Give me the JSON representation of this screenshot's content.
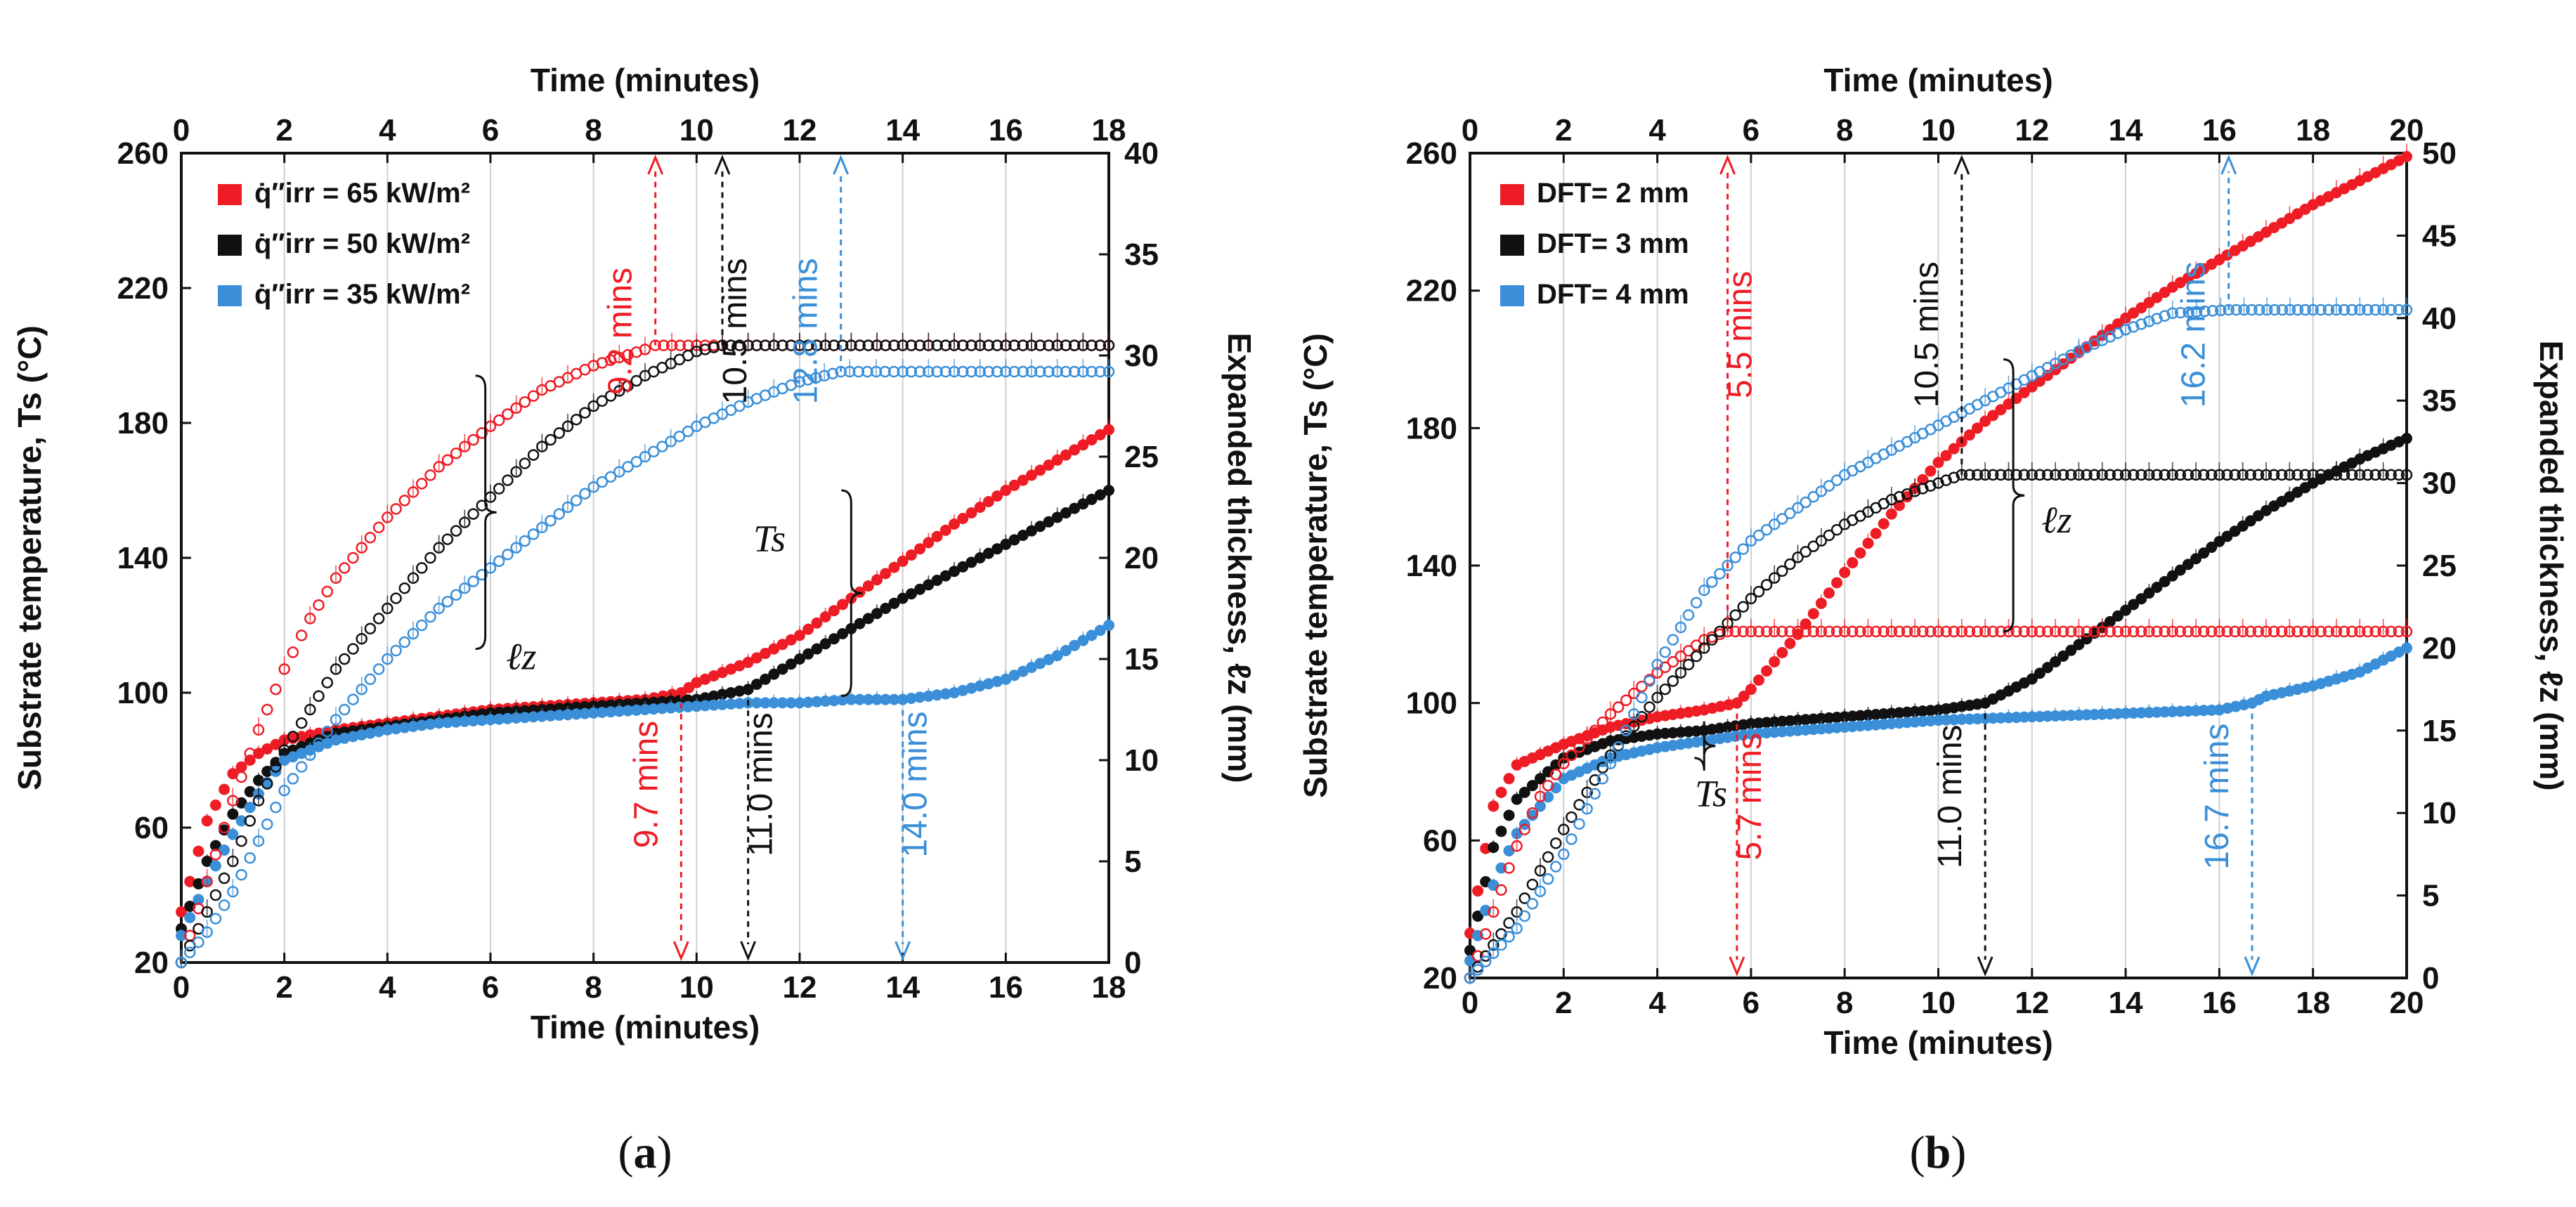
{
  "colors": {
    "red": "#ee1c25",
    "black": "#111111",
    "blue": "#3a8fd8",
    "grid": "#d0d0d0"
  },
  "chart_data": [
    {
      "panel": "(a)",
      "panel_letter": "a",
      "type": "scatter",
      "xlabel_bottom": "Time (minutes)",
      "xlabel_top": "Time (minutes)",
      "ylabel_left": "Substrate temperature, Ts (°C)",
      "ylabel_right": "Expanded thickness, ℓz (mm)",
      "xlim": [
        0,
        18
      ],
      "xticks": [
        0,
        2,
        4,
        6,
        8,
        10,
        12,
        14,
        16,
        18
      ],
      "ylim_left": [
        20,
        260
      ],
      "yticks_left": [
        20,
        60,
        100,
        140,
        180,
        220,
        260
      ],
      "ylim_right": [
        0,
        40
      ],
      "yticks_right": [
        0,
        5,
        10,
        15,
        20,
        25,
        30,
        35,
        40
      ],
      "legend": [
        {
          "label": "q̇″irr = 65 kW/m²",
          "color": "red"
        },
        {
          "label": "q̇″irr = 50 kW/m²",
          "color": "black"
        },
        {
          "label": "q̇″irr = 35 kW/m²",
          "color": "blue"
        }
      ],
      "brace_labels": {
        "thickness": "ℓz",
        "temperature": "Ts"
      },
      "series": [
        {
          "name": "65 kW/m² Ts",
          "color": "red",
          "kind": "temperature",
          "x": [
            0,
            0.5,
            1,
            1.5,
            2,
            3,
            4,
            5,
            6,
            7,
            8,
            9,
            9.7,
            10,
            11,
            12,
            13,
            14,
            15,
            16,
            17,
            18
          ],
          "y": [
            35,
            62,
            76,
            82,
            86,
            89,
            91,
            93,
            95,
            96,
            97,
            98,
            100,
            103,
            109,
            117,
            128,
            139,
            150,
            160,
            169,
            178
          ]
        },
        {
          "name": "50 kW/m² Ts",
          "color": "black",
          "kind": "temperature",
          "x": [
            0,
            0.5,
            1,
            1.5,
            2,
            3,
            4,
            5,
            6,
            7,
            8,
            9,
            10,
            11,
            12,
            13,
            14,
            15,
            16,
            17,
            18
          ],
          "y": [
            30,
            50,
            64,
            74,
            82,
            88,
            90,
            92,
            94,
            95,
            96,
            97,
            98,
            101,
            110,
            119,
            128,
            136,
            144,
            152,
            160
          ]
        },
        {
          "name": "35 kW/m² Ts",
          "color": "blue",
          "kind": "temperature",
          "x": [
            0,
            0.5,
            1,
            1.5,
            2,
            3,
            4,
            5,
            6,
            7,
            8,
            9,
            10,
            11,
            12,
            13,
            14,
            15,
            16,
            17,
            18
          ],
          "y": [
            28,
            44,
            58,
            70,
            80,
            86,
            89,
            91,
            92,
            93,
            94,
            95,
            96,
            97,
            97,
            98,
            98,
            100,
            104,
            111,
            120
          ]
        },
        {
          "name": "65 kW/m² ℓz",
          "color": "red",
          "kind": "thickness",
          "x": [
            0,
            0.5,
            1,
            1.5,
            2,
            2.5,
            3,
            3.5,
            4,
            5,
            6,
            7,
            8,
            9,
            9.2,
            10,
            12,
            14,
            16,
            18
          ],
          "y": [
            0,
            4,
            8,
            11.5,
            14.5,
            17,
            19,
            20.5,
            22,
            24.5,
            26.5,
            28.3,
            29.5,
            30.3,
            30.5,
            30.5,
            30.5,
            30.5,
            30.5,
            30.5
          ]
        },
        {
          "name": "50 kW/m² ℓz",
          "color": "black",
          "kind": "thickness",
          "x": [
            0,
            0.5,
            1,
            1.5,
            2,
            3,
            4,
            5,
            6,
            7,
            8,
            9,
            10,
            10.5,
            12,
            14,
            16,
            18
          ],
          "y": [
            0,
            2.5,
            5,
            8,
            10.5,
            14.5,
            17.5,
            20.5,
            23,
            25.5,
            27.5,
            29,
            30.2,
            30.5,
            30.5,
            30.5,
            30.5,
            30.5
          ]
        },
        {
          "name": "35 kW/m² ℓz",
          "color": "blue",
          "kind": "thickness",
          "x": [
            0,
            0.5,
            1,
            1.5,
            2,
            3,
            4,
            5,
            6,
            7,
            8,
            9,
            10,
            11,
            12,
            12.8,
            14,
            16,
            18
          ],
          "y": [
            0,
            1.5,
            3.5,
            6,
            8.5,
            12,
            15,
            17.5,
            19.5,
            21.5,
            23.5,
            25,
            26.5,
            27.7,
            28.7,
            29.2,
            29.2,
            29.2,
            29.2
          ]
        }
      ],
      "annotations": [
        {
          "text": "9.2 mins",
          "x": 9.2,
          "color": "red",
          "target": "thickness",
          "arrow": "up"
        },
        {
          "text": "10.5 mins",
          "x": 10.5,
          "color": "black",
          "target": "thickness",
          "arrow": "up"
        },
        {
          "text": "12.8 mins",
          "x": 12.8,
          "color": "blue",
          "target": "thickness",
          "arrow": "up"
        },
        {
          "text": "9.7 mins",
          "x": 9.7,
          "color": "red",
          "target": "temperature",
          "arrow": "down"
        },
        {
          "text": "11.0 mins",
          "x": 11.0,
          "color": "black",
          "target": "temperature",
          "arrow": "down"
        },
        {
          "text": "14.0 mins",
          "x": 14.0,
          "color": "blue",
          "target": "temperature",
          "arrow": "down"
        }
      ]
    },
    {
      "panel": "(b)",
      "panel_letter": "b",
      "type": "scatter",
      "xlabel_bottom": "Time (minutes)",
      "xlabel_top": "Time (minutes)",
      "ylabel_left": "Substrate temperature, Ts (°C)",
      "ylabel_right": "Expanded thickness, ℓz (mm)",
      "xlim": [
        0,
        20
      ],
      "xticks": [
        0,
        2,
        4,
        6,
        8,
        10,
        12,
        14,
        16,
        18,
        20
      ],
      "ylim_left": [
        20,
        260
      ],
      "yticks_left": [
        20,
        60,
        100,
        140,
        180,
        220,
        260
      ],
      "ylim_right": [
        0,
        50
      ],
      "yticks_right": [
        0,
        5,
        10,
        15,
        20,
        25,
        30,
        35,
        40,
        45,
        50
      ],
      "legend": [
        {
          "label": "DFT= 2 mm",
          "color": "red"
        },
        {
          "label": "DFT= 3 mm",
          "color": "black"
        },
        {
          "label": "DFT= 4 mm",
          "color": "blue"
        }
      ],
      "brace_labels": {
        "thickness": "ℓz",
        "temperature": "Ts"
      },
      "series": [
        {
          "name": "DFT 2 mm Ts",
          "color": "red",
          "kind": "temperature",
          "x": [
            0,
            0.5,
            1,
            2,
            3,
            4,
            5,
            5.7,
            6,
            7,
            8,
            9,
            10,
            11,
            12,
            13,
            14,
            15,
            16,
            17,
            18,
            19,
            20
          ],
          "y": [
            33,
            70,
            82,
            88,
            93,
            96,
            98,
            100,
            104,
            120,
            138,
            155,
            170,
            182,
            192,
            202,
            212,
            221,
            229,
            237,
            245,
            252,
            259
          ]
        },
        {
          "name": "DFT 3 mm Ts",
          "color": "black",
          "kind": "temperature",
          "x": [
            0,
            0.5,
            1,
            2,
            3,
            4,
            5,
            6,
            7,
            8,
            9,
            10,
            11,
            12,
            13,
            14,
            15,
            16,
            17,
            18,
            19,
            20
          ],
          "y": [
            28,
            58,
            72,
            84,
            89,
            91,
            92,
            94,
            95,
            96,
            97,
            98,
            100,
            107,
            117,
            127,
            137,
            147,
            156,
            164,
            171,
            177
          ]
        },
        {
          "name": "DFT 4 mm Ts",
          "color": "blue",
          "kind": "temperature",
          "x": [
            0,
            0.5,
            1,
            2,
            3,
            4,
            5,
            6,
            8,
            10,
            12,
            14,
            16,
            16.7,
            17,
            18,
            19,
            20
          ],
          "y": [
            25,
            47,
            62,
            78,
            84,
            87,
            89,
            91,
            93,
            95,
            96,
            97,
            98,
            100,
            102,
            105,
            109,
            116
          ]
        },
        {
          "name": "DFT 2 mm ℓz",
          "color": "red",
          "kind": "thickness",
          "x": [
            0,
            0.5,
            1,
            1.5,
            2,
            3,
            4,
            5,
            5.5,
            6,
            8,
            10,
            12,
            14,
            16,
            18,
            20
          ],
          "y": [
            0,
            4,
            8,
            11,
            13,
            16,
            18.5,
            20.5,
            21,
            21,
            21,
            21,
            21,
            21,
            21,
            21,
            21
          ]
        },
        {
          "name": "DFT 3 mm ℓz",
          "color": "black",
          "kind": "thickness",
          "x": [
            0,
            0.5,
            1,
            2,
            3,
            4,
            5,
            6,
            7,
            8,
            9,
            10,
            10.5,
            12,
            14,
            16,
            18,
            20
          ],
          "y": [
            0,
            2,
            4,
            9,
            13.5,
            17,
            20,
            23,
            25.5,
            27.5,
            29,
            30,
            30.5,
            30.5,
            30.5,
            30.5,
            30.5,
            30.5
          ]
        },
        {
          "name": "DFT 4 mm ℓz",
          "color": "blue",
          "kind": "thickness",
          "x": [
            0,
            0.5,
            1,
            2,
            3,
            4,
            5,
            6,
            7,
            8,
            9,
            10,
            11,
            12,
            13,
            14,
            15,
            16.2,
            18,
            20
          ],
          "y": [
            0,
            1.5,
            3,
            7.5,
            13,
            19,
            23.5,
            26.5,
            28.5,
            30.5,
            32,
            33.5,
            35,
            36.5,
            38,
            39.3,
            40.3,
            40.5,
            40.5,
            40.5
          ]
        }
      ],
      "annotations": [
        {
          "text": "5.5 mins",
          "x": 5.5,
          "color": "red",
          "target": "thickness",
          "arrow": "up"
        },
        {
          "text": "10.5 mins",
          "x": 10.5,
          "color": "black",
          "target": "thickness",
          "arrow": "up"
        },
        {
          "text": "16.2 mins",
          "x": 16.2,
          "color": "blue",
          "target": "thickness",
          "arrow": "up"
        },
        {
          "text": "5.7 mins",
          "x": 5.7,
          "color": "red",
          "target": "temperature",
          "arrow": "down"
        },
        {
          "text": "11.0 mins",
          "x": 11.0,
          "color": "black",
          "target": "temperature",
          "arrow": "down"
        },
        {
          "text": "16.7 mins",
          "x": 16.7,
          "color": "blue",
          "target": "temperature",
          "arrow": "down"
        }
      ]
    }
  ]
}
